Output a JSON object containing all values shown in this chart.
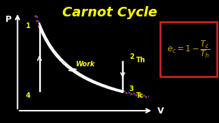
{
  "title": "Carnot Cycle",
  "title_color": "#FFFF00",
  "bg_color": "#000000",
  "axis_color": "#FFFFFF",
  "p_label": "P",
  "v_label": "V",
  "work_label": "Work",
  "th_label": "Th",
  "tc_label": "Tc",
  "point_labels": [
    "1",
    "2",
    "3",
    "4"
  ],
  "cycle_color": "#FFFFFF",
  "th_curve_color": "#CC3333",
  "tc_curve_color": "#4444CC",
  "formula_box_color": "#CC2222",
  "formula_text_color": "#CCAA00",
  "label_color": "#FFFF00",
  "p1": [
    0.18,
    0.78
  ],
  "p2": [
    0.56,
    0.5
  ],
  "p3": [
    0.56,
    0.26
  ],
  "p4": [
    0.18,
    0.26
  ],
  "C_th": 0.1404,
  "C_tc": 0.0728
}
